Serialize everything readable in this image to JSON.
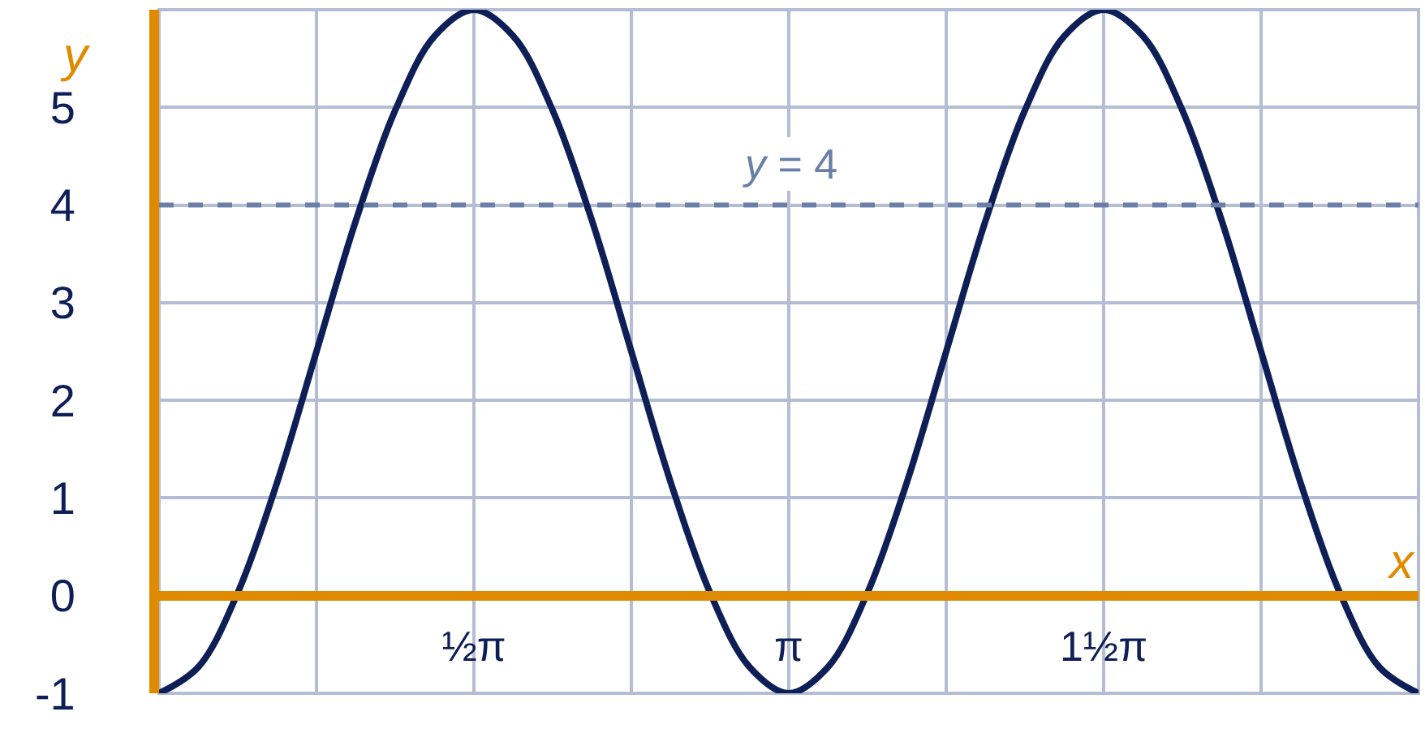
{
  "chart_data": {
    "type": "line",
    "xlabel": "x",
    "ylabel": "y",
    "categories": [
      null,
      null,
      null,
      null,
      null,
      null,
      null,
      null,
      "½π",
      null,
      null,
      null,
      null,
      null,
      null,
      null,
      "π",
      null,
      null,
      null,
      null,
      null,
      null,
      null,
      "1½π",
      null,
      null,
      null,
      null,
      null,
      null,
      null,
      null
    ],
    "series": [
      {
        "color": "#0d1f56",
        "values": [
          -1,
          -0.73,
          0.03,
          1.16,
          2.5,
          3.84,
          4.97,
          5.73,
          6,
          5.73,
          4.97,
          3.84,
          2.5,
          1.16,
          0.03,
          -0.73,
          -1,
          -0.73,
          0.03,
          1.16,
          2.5,
          3.84,
          4.97,
          5.73,
          6,
          5.73,
          4.97,
          3.84,
          2.5,
          1.16,
          0.03,
          -0.73,
          -1
        ]
      }
    ],
    "ylim": [
      -1,
      6
    ],
    "yticks": [
      -1,
      0,
      1,
      2,
      3,
      4,
      5,
      {
        "value": 6,
        "label": null
      }
    ],
    "ref_lines": [
      {
        "axis": "y",
        "value": 4,
        "label": "y = 4",
        "color": "#6a7fa8",
        "line_style": "dashed"
      }
    ],
    "grid": true,
    "marker": "none",
    "line_style": "solid"
  }
}
